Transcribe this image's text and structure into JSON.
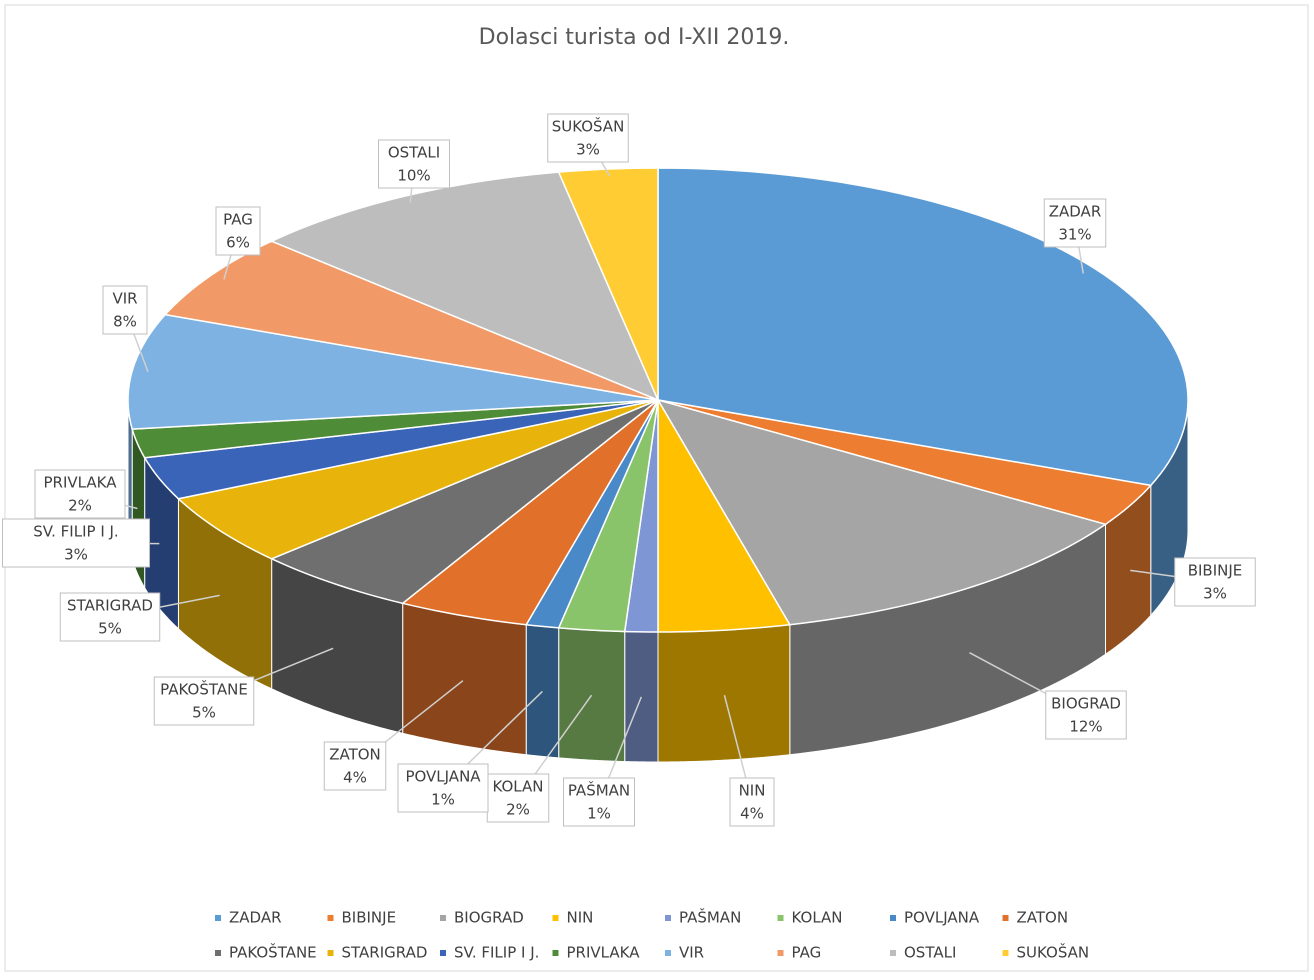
{
  "chart_data": {
    "type": "pie3d",
    "title": "Dolasci turista od I-XII 2019.",
    "categories": [
      "ZADAR",
      "BIBINJE",
      "BIOGRAD",
      "NIN",
      "PAŠMAN",
      "KOLAN",
      "POVLJANA",
      "ZATON",
      "PAKOŠTANE",
      "STARIGRAD",
      "SV. FILIP I J.",
      "PRIVLAKA",
      "VIR",
      "PAG",
      "OSTALI",
      "SUKOŠAN"
    ],
    "values": [
      31,
      3,
      12,
      4,
      1,
      2,
      1,
      4,
      5,
      5,
      3,
      2,
      8,
      6,
      10,
      3
    ],
    "value_labels": [
      "31%",
      "3%",
      "12%",
      "4%",
      "1%",
      "2%",
      "1%",
      "4%",
      "5%",
      "5%",
      "3%",
      "2%",
      "8%",
      "6%",
      "10%",
      "3%"
    ],
    "colors": [
      "#5b9bd5",
      "#ed7d31",
      "#a5a5a5",
      "#ffc000",
      "#7f96d4",
      "#8ac46a",
      "#4a89c8",
      "#e0702a",
      "#6f6f6f",
      "#e8b40c",
      "#3a64b8",
      "#4f8c38",
      "#7eb2e3",
      "#f19a68",
      "#bdbdbd",
      "#ffcc33"
    ],
    "legend": "bottom"
  }
}
